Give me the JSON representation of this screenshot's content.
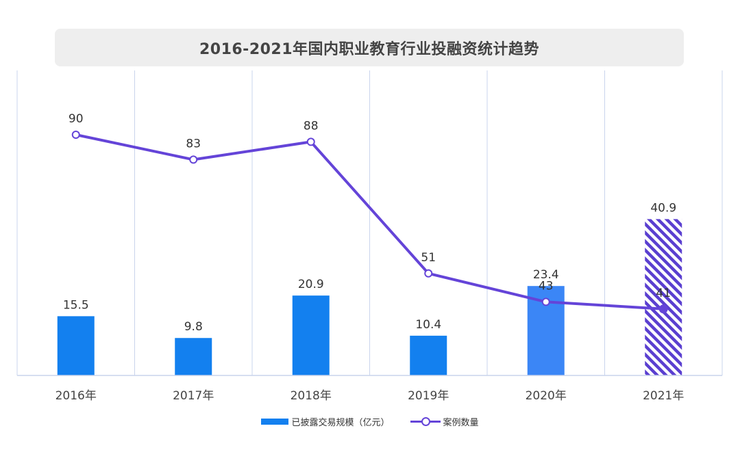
{
  "title": "2016-2021年国内职业教育行业投融资统计趋势",
  "chart_data": {
    "type": "bar+line",
    "title": "2016-2021年国内职业教育行业投融资统计趋势",
    "categories": [
      "2016年",
      "2017年",
      "2018年",
      "2019年",
      "2020年",
      "2021年"
    ],
    "series": [
      {
        "name": "已披露交易规模（亿元）",
        "type": "bar",
        "values": [
          15.5,
          9.8,
          20.9,
          10.4,
          23.4,
          40.9
        ],
        "labels": [
          "15.5",
          "9.8",
          "20.9",
          "10.4",
          "23.4",
          "40.9"
        ],
        "highlight_last": "hatched"
      },
      {
        "name": "案例数量",
        "type": "line",
        "values": [
          90,
          83,
          88,
          51,
          43,
          41
        ],
        "labels": [
          "90",
          "83",
          "88",
          "51",
          "43",
          "41"
        ],
        "last_marker": "filled"
      }
    ],
    "legend_position": "bottom",
    "grid": "vertical",
    "colors": {
      "bar": "#1380ef",
      "bar_2020": "#3b86f6",
      "line": "#6444d8",
      "grid": "#c9d4ec",
      "hatch": "#5a3fd0"
    }
  },
  "legend": {
    "bar_label": "已披露交易规模（亿元）",
    "line_label": "案例数量"
  }
}
